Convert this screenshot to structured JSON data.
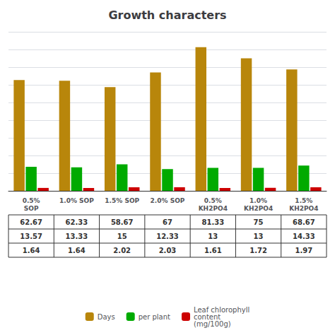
{
  "chart_data": {
    "type": "bar",
    "title": "Growth characters",
    "categories": [
      "0.5%\nSOP",
      "1.0% SOP",
      "1.5% SOP",
      "2.0% SOP",
      "0.5%\nKH2PO4",
      "1.0%\nKH2PO4",
      "1.5%\nKH2PO4"
    ],
    "series": [
      {
        "name": "Days",
        "color": "#b8860b",
        "values": [
          62.67,
          62.33,
          58.67,
          67.0,
          81.33,
          75.0,
          68.67
        ]
      },
      {
        "name": "per plant",
        "color": "#00aa00",
        "values": [
          13.57,
          13.33,
          15.0,
          12.33,
          13.0,
          13.0,
          14.33
        ]
      },
      {
        "name": "Leaf chlorophyll\ncontent\n(mg/100g)",
        "color": "#cc0000",
        "values": [
          1.64,
          1.64,
          2.02,
          2.03,
          1.61,
          1.72,
          1.97
        ]
      }
    ],
    "ylim": [
      0,
      90
    ],
    "yticks": [
      0,
      10,
      20,
      30,
      40,
      50,
      60,
      70,
      80,
      90
    ],
    "grid": true,
    "legend": "bottom",
    "tick_labels": "x"
  }
}
